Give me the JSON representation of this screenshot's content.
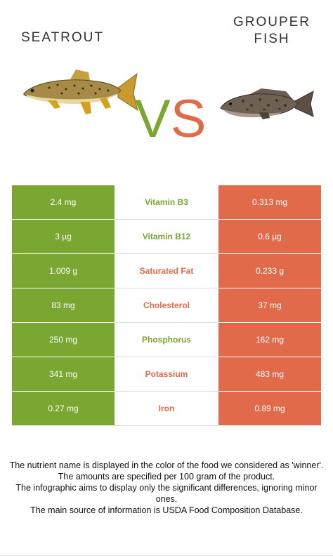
{
  "header": {
    "left_food": "SEATROUT",
    "right_food": "GROUPER\nFISH",
    "vs_v": "V",
    "vs_s": "S"
  },
  "colors": {
    "left": "#7aa632",
    "right": "#e06a4a"
  },
  "nutrients": [
    {
      "name": "Vitamin B3",
      "left": "2.4 mg",
      "right": "0.313 mg",
      "winner": "left"
    },
    {
      "name": "Vitamin B12",
      "left": "3 µg",
      "right": "0.6 µg",
      "winner": "left"
    },
    {
      "name": "Saturated Fat",
      "left": "1.009 g",
      "right": "0.233 g",
      "winner": "right"
    },
    {
      "name": "Cholesterol",
      "left": "83 mg",
      "right": "37 mg",
      "winner": "right"
    },
    {
      "name": "Phosphorus",
      "left": "250 mg",
      "right": "162 mg",
      "winner": "left"
    },
    {
      "name": "Potassium",
      "left": "341 mg",
      "right": "483 mg",
      "winner": "right"
    },
    {
      "name": "Iron",
      "left": "0.27 mg",
      "right": "0.89 mg",
      "winner": "right"
    }
  ],
  "footer": {
    "line1": "The nutrient name is displayed in the color of the food we considered as 'winner'.",
    "line2": "The amounts are specified per 100 gram of the product.",
    "line3": "The infographic aims to display only the significant differences, ignoring minor ones.",
    "line4": "The main source of information is USDA Food Composition Database."
  }
}
